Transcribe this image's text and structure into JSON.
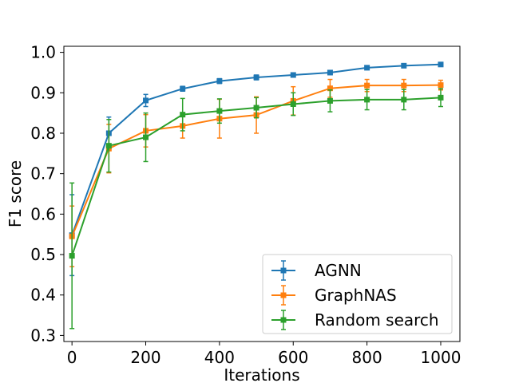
{
  "chart_data": {
    "type": "line",
    "title": "",
    "xlabel": "Iterations",
    "ylabel": "F1 score",
    "xlim": [
      -22,
      1052
    ],
    "ylim": [
      0.285,
      1.015
    ],
    "xticks": [
      0,
      200,
      400,
      600,
      800,
      1000
    ],
    "xtick_labels": [
      "0",
      "200",
      "400",
      "600",
      "800",
      "1000"
    ],
    "yticks": [
      0.3,
      0.4,
      0.5,
      0.6,
      0.7,
      0.8,
      0.9,
      1.0
    ],
    "ytick_labels": [
      "0.3",
      "0.4",
      "0.5",
      "0.6",
      "0.7",
      "0.8",
      "0.9",
      "1.0"
    ],
    "grid": false,
    "legend_position": "lower-right",
    "x": [
      0,
      100,
      200,
      300,
      400,
      500,
      600,
      700,
      800,
      900,
      1000
    ],
    "series": [
      {
        "name": "AGNN",
        "color": "#1f77b4",
        "values": [
          0.548,
          0.8,
          0.881,
          0.91,
          0.929,
          0.938,
          0.944,
          0.95,
          0.962,
          0.967,
          0.97
        ],
        "errors": [
          0.1,
          0.04,
          0.015,
          0.006,
          0.006,
          0.006,
          0.005,
          0.005,
          0.005,
          0.005,
          0.004
        ]
      },
      {
        "name": "GraphNAS",
        "color": "#ff7f0e",
        "values": [
          0.545,
          0.762,
          0.806,
          0.818,
          0.836,
          0.845,
          0.88,
          0.911,
          0.918,
          0.918,
          0.919
        ],
        "errors": [
          0.075,
          0.06,
          0.04,
          0.03,
          0.048,
          0.045,
          0.035,
          0.022,
          0.015,
          0.015,
          0.012
        ]
      },
      {
        "name": "Random search",
        "color": "#2ca02c",
        "values": [
          0.497,
          0.769,
          0.79,
          0.846,
          0.855,
          0.863,
          0.872,
          0.88,
          0.883,
          0.883,
          0.888
        ],
        "errors": [
          0.18,
          0.065,
          0.06,
          0.04,
          0.03,
          0.025,
          0.028,
          0.027,
          0.025,
          0.025,
          0.022
        ]
      }
    ]
  }
}
